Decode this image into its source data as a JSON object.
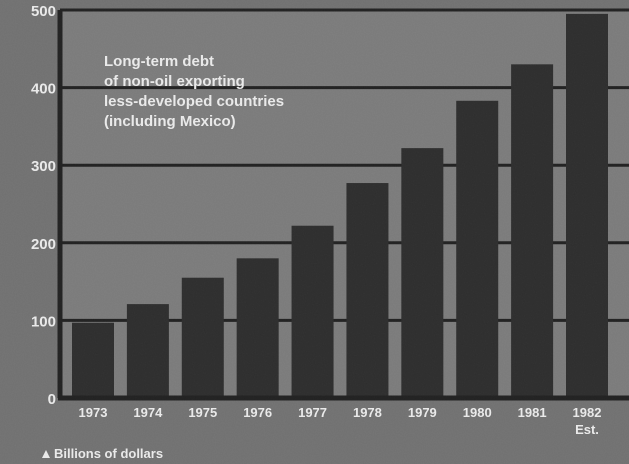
{
  "chart_data": {
    "type": "bar",
    "title_lines": [
      "Long-term debt",
      "of non-oil exporting",
      "less-developed countries",
      "(including Mexico)"
    ],
    "categories": [
      "1973",
      "1974",
      "1975",
      "1976",
      "1977",
      "1978",
      "1979",
      "1980",
      "1981",
      "1982"
    ],
    "category_notes": [
      "",
      "",
      "",
      "",
      "",
      "",
      "",
      "",
      "",
      "Est."
    ],
    "values": [
      97,
      121,
      155,
      180,
      222,
      277,
      322,
      383,
      430,
      495
    ],
    "ylabel": "Billions of dollars",
    "ylim": [
      0,
      500
    ],
    "yticks": [
      "0",
      "100",
      "200",
      "300",
      "400",
      "500"
    ],
    "grid": true
  },
  "colors": {
    "background": "#6e6e6e",
    "panel": "#7a7a7a",
    "bar": "#1c1c1c",
    "gridline": "#0d0d0d",
    "text": "#ffffff"
  }
}
